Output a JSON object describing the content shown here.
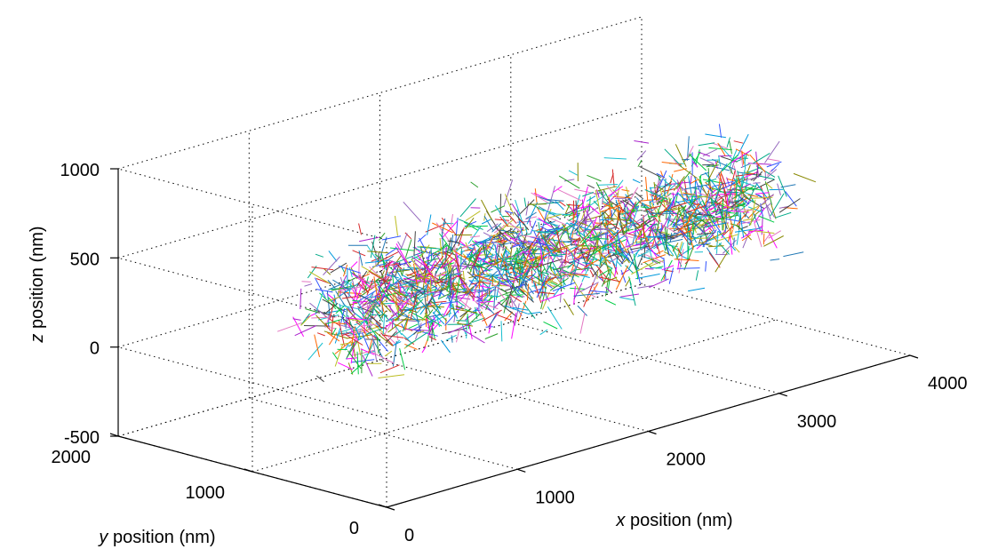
{
  "chart_data": {
    "type": "line3d",
    "title": "",
    "xlabel": {
      "italic": "x",
      "rest": " position (nm)"
    },
    "ylabel": {
      "italic": "y",
      "rest": " position (nm)"
    },
    "zlabel": {
      "italic": "z",
      "rest": " position (nm)"
    },
    "xlim": [
      0,
      4000
    ],
    "ylim": [
      0,
      2000
    ],
    "zlim": [
      -500,
      1000
    ],
    "xticks": [
      {
        "value": 0,
        "label": "0"
      },
      {
        "value": 1000,
        "label": "1000"
      },
      {
        "value": 2000,
        "label": "2000"
      },
      {
        "value": 3000,
        "label": "3000"
      },
      {
        "value": 4000,
        "label": "4000"
      }
    ],
    "yticks": [
      {
        "value": 0,
        "label": "0"
      },
      {
        "value": 1000,
        "label": "1000"
      },
      {
        "value": 2000,
        "label": "2000"
      }
    ],
    "zticks": [
      {
        "value": -500,
        "label": "-500"
      },
      {
        "value": 0,
        "label": "0"
      },
      {
        "value": 500,
        "label": "500"
      },
      {
        "value": 1000,
        "label": "1000"
      }
    ],
    "grid": true,
    "series_note": "many short multicolored trajectory segments filling a rod-shaped volume",
    "cloud": {
      "x_range": [
        600,
        3900
      ],
      "y_center": 1000,
      "y_halfwidth": 450,
      "z_center": 250,
      "z_halfwidth": 420,
      "segment_count": 2200
    },
    "palette": [
      "#1f77b4",
      "#2ca02c",
      "#d62728",
      "#9467bd",
      "#e377c2",
      "#17becf",
      "#bcbd22",
      "#ff00ff",
      "#00aa88",
      "#3355ff",
      "#888800",
      "#00cc44",
      "#444444",
      "#ff6600",
      "#aa22cc",
      "#0099dd"
    ]
  }
}
